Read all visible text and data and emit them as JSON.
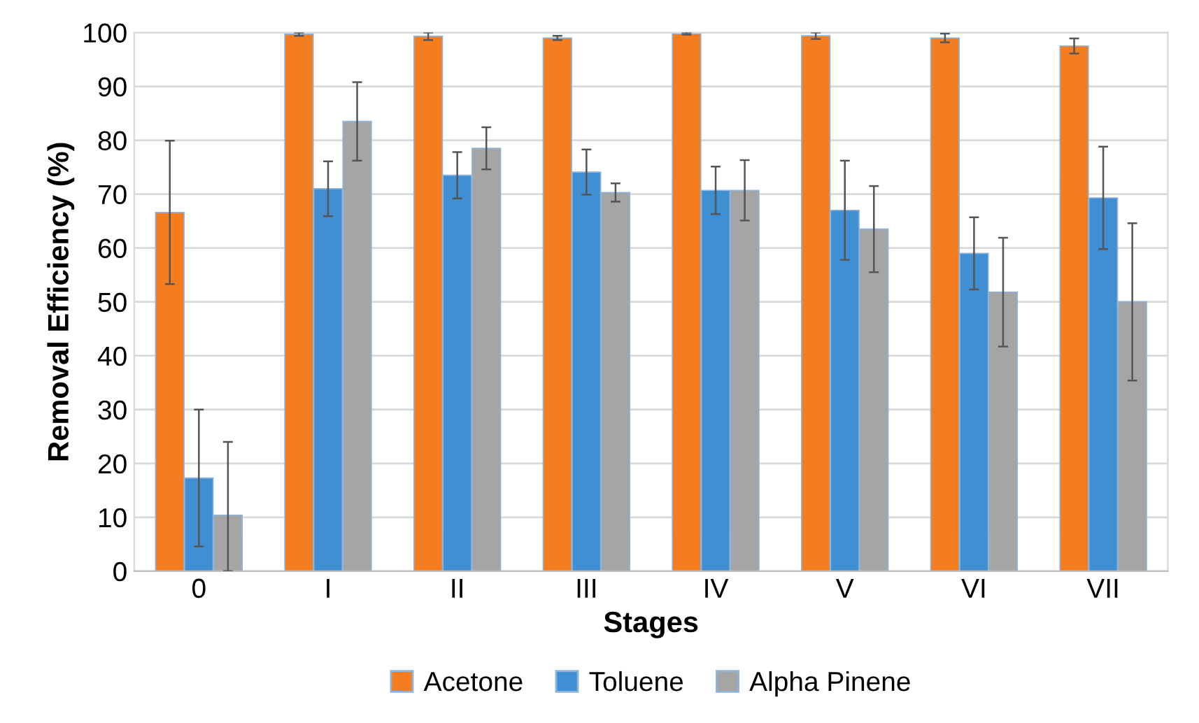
{
  "chart_data": {
    "type": "bar",
    "xlabel": "Stages",
    "ylabel": "Removal Efficiency (%)",
    "categories": [
      "0",
      "I",
      "II",
      "III",
      "IV",
      "V",
      "VI",
      "VII"
    ],
    "series": [
      {
        "name": "Acetone",
        "color": "#f47d20",
        "values": [
          66.6,
          99.7,
          99.3,
          99.0,
          99.8,
          99.4,
          99.0,
          97.5
        ],
        "errors": [
          13.3,
          0.3,
          0.7,
          0.4,
          0.2,
          0.6,
          0.8,
          1.4
        ]
      },
      {
        "name": "Toluene",
        "color": "#3f8fd2",
        "values": [
          17.3,
          71.0,
          73.5,
          74.1,
          70.7,
          67.0,
          59.0,
          69.3
        ],
        "errors": [
          12.7,
          5.1,
          4.3,
          4.2,
          4.4,
          9.2,
          6.7,
          9.5
        ]
      },
      {
        "name": "Alpha Pinene",
        "color": "#a5a5a5",
        "values": [
          10.4,
          83.5,
          78.5,
          70.3,
          70.7,
          63.5,
          51.8,
          50.0
        ],
        "errors": [
          [
            0,
            24.0
          ],
          7.3,
          3.9,
          1.7,
          5.6,
          8.0,
          10.1,
          14.6
        ]
      }
    ],
    "ylim": [
      0,
      100
    ],
    "yticks": [
      0,
      10,
      20,
      30,
      40,
      50,
      60,
      70,
      80,
      90,
      100
    ],
    "grid": "y",
    "legend": "bottom"
  }
}
